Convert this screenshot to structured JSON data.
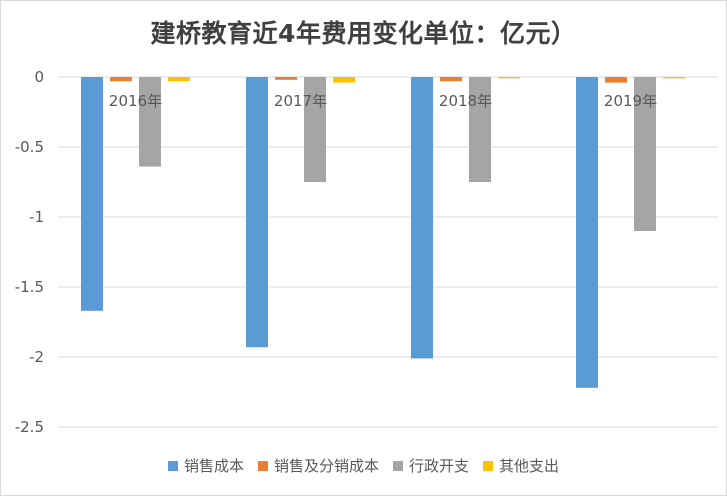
{
  "chart_data": {
    "type": "bar",
    "title": "建桥教育近4年费用变化单位：亿元）",
    "categories": [
      "2016年",
      "2017年",
      "2018年",
      "2019年"
    ],
    "series": [
      {
        "name": "销售成本",
        "color": "#5b9bd5",
        "values": [
          -1.67,
          -1.93,
          -2.01,
          -2.22
        ]
      },
      {
        "name": "销售及分销成本",
        "color": "#ed7d31",
        "values": [
          -0.03,
          -0.02,
          -0.03,
          -0.04
        ]
      },
      {
        "name": "行政开支",
        "color": "#a5a5a5",
        "values": [
          -0.64,
          -0.75,
          -0.75,
          -1.1
        ]
      },
      {
        "name": "其他支出",
        "color": "#ffc000",
        "values": [
          -0.03,
          -0.04,
          -0.01,
          -0.01
        ]
      }
    ],
    "y_ticks": [
      "0",
      "-0.5",
      "-1",
      "-1.5",
      "-2",
      "-2.5"
    ],
    "ylim": [
      -2.5,
      0
    ],
    "grid": "horizontal",
    "legend": "bottom"
  }
}
